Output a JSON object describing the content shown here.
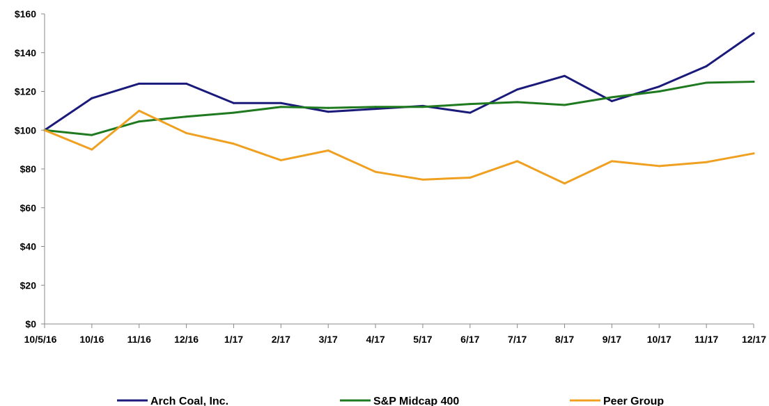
{
  "chart_data": {
    "type": "line",
    "title": "",
    "xlabel": "",
    "ylabel": "",
    "categories": [
      "10/5/16",
      "10/16",
      "11/16",
      "12/16",
      "1/17",
      "2/17",
      "3/17",
      "4/17",
      "5/17",
      "6/17",
      "7/17",
      "8/17",
      "9/17",
      "10/17",
      "11/17",
      "12/17"
    ],
    "ylim": [
      0,
      160
    ],
    "yticks": [
      0,
      20,
      40,
      60,
      80,
      100,
      120,
      140,
      160
    ],
    "ytick_labels": [
      "$0",
      "$20",
      "$40",
      "$60",
      "$80",
      "$100",
      "$120",
      "$140",
      "$160"
    ],
    "grid": false,
    "legend_position": "bottom",
    "series": [
      {
        "name": "Arch Coal, Inc.",
        "color": "#1a1a7a",
        "values": [
          100,
          116.5,
          124,
          124,
          114,
          114,
          109.5,
          111,
          112.5,
          109,
          121,
          128,
          115,
          122.5,
          133,
          150
        ]
      },
      {
        "name": "S&P Midcap 400",
        "color": "#1f7a1f",
        "values": [
          100,
          97.5,
          104.5,
          107,
          109,
          112,
          111.5,
          112,
          112,
          113.5,
          114.5,
          113,
          117,
          120,
          124.5,
          125
        ]
      },
      {
        "name": "Peer Group",
        "color": "#f0a020",
        "values": [
          100,
          90,
          110,
          98.5,
          93,
          84.5,
          89.5,
          78.5,
          74.5,
          75.5,
          84,
          72.5,
          84,
          81.5,
          83.5,
          88
        ]
      }
    ]
  }
}
